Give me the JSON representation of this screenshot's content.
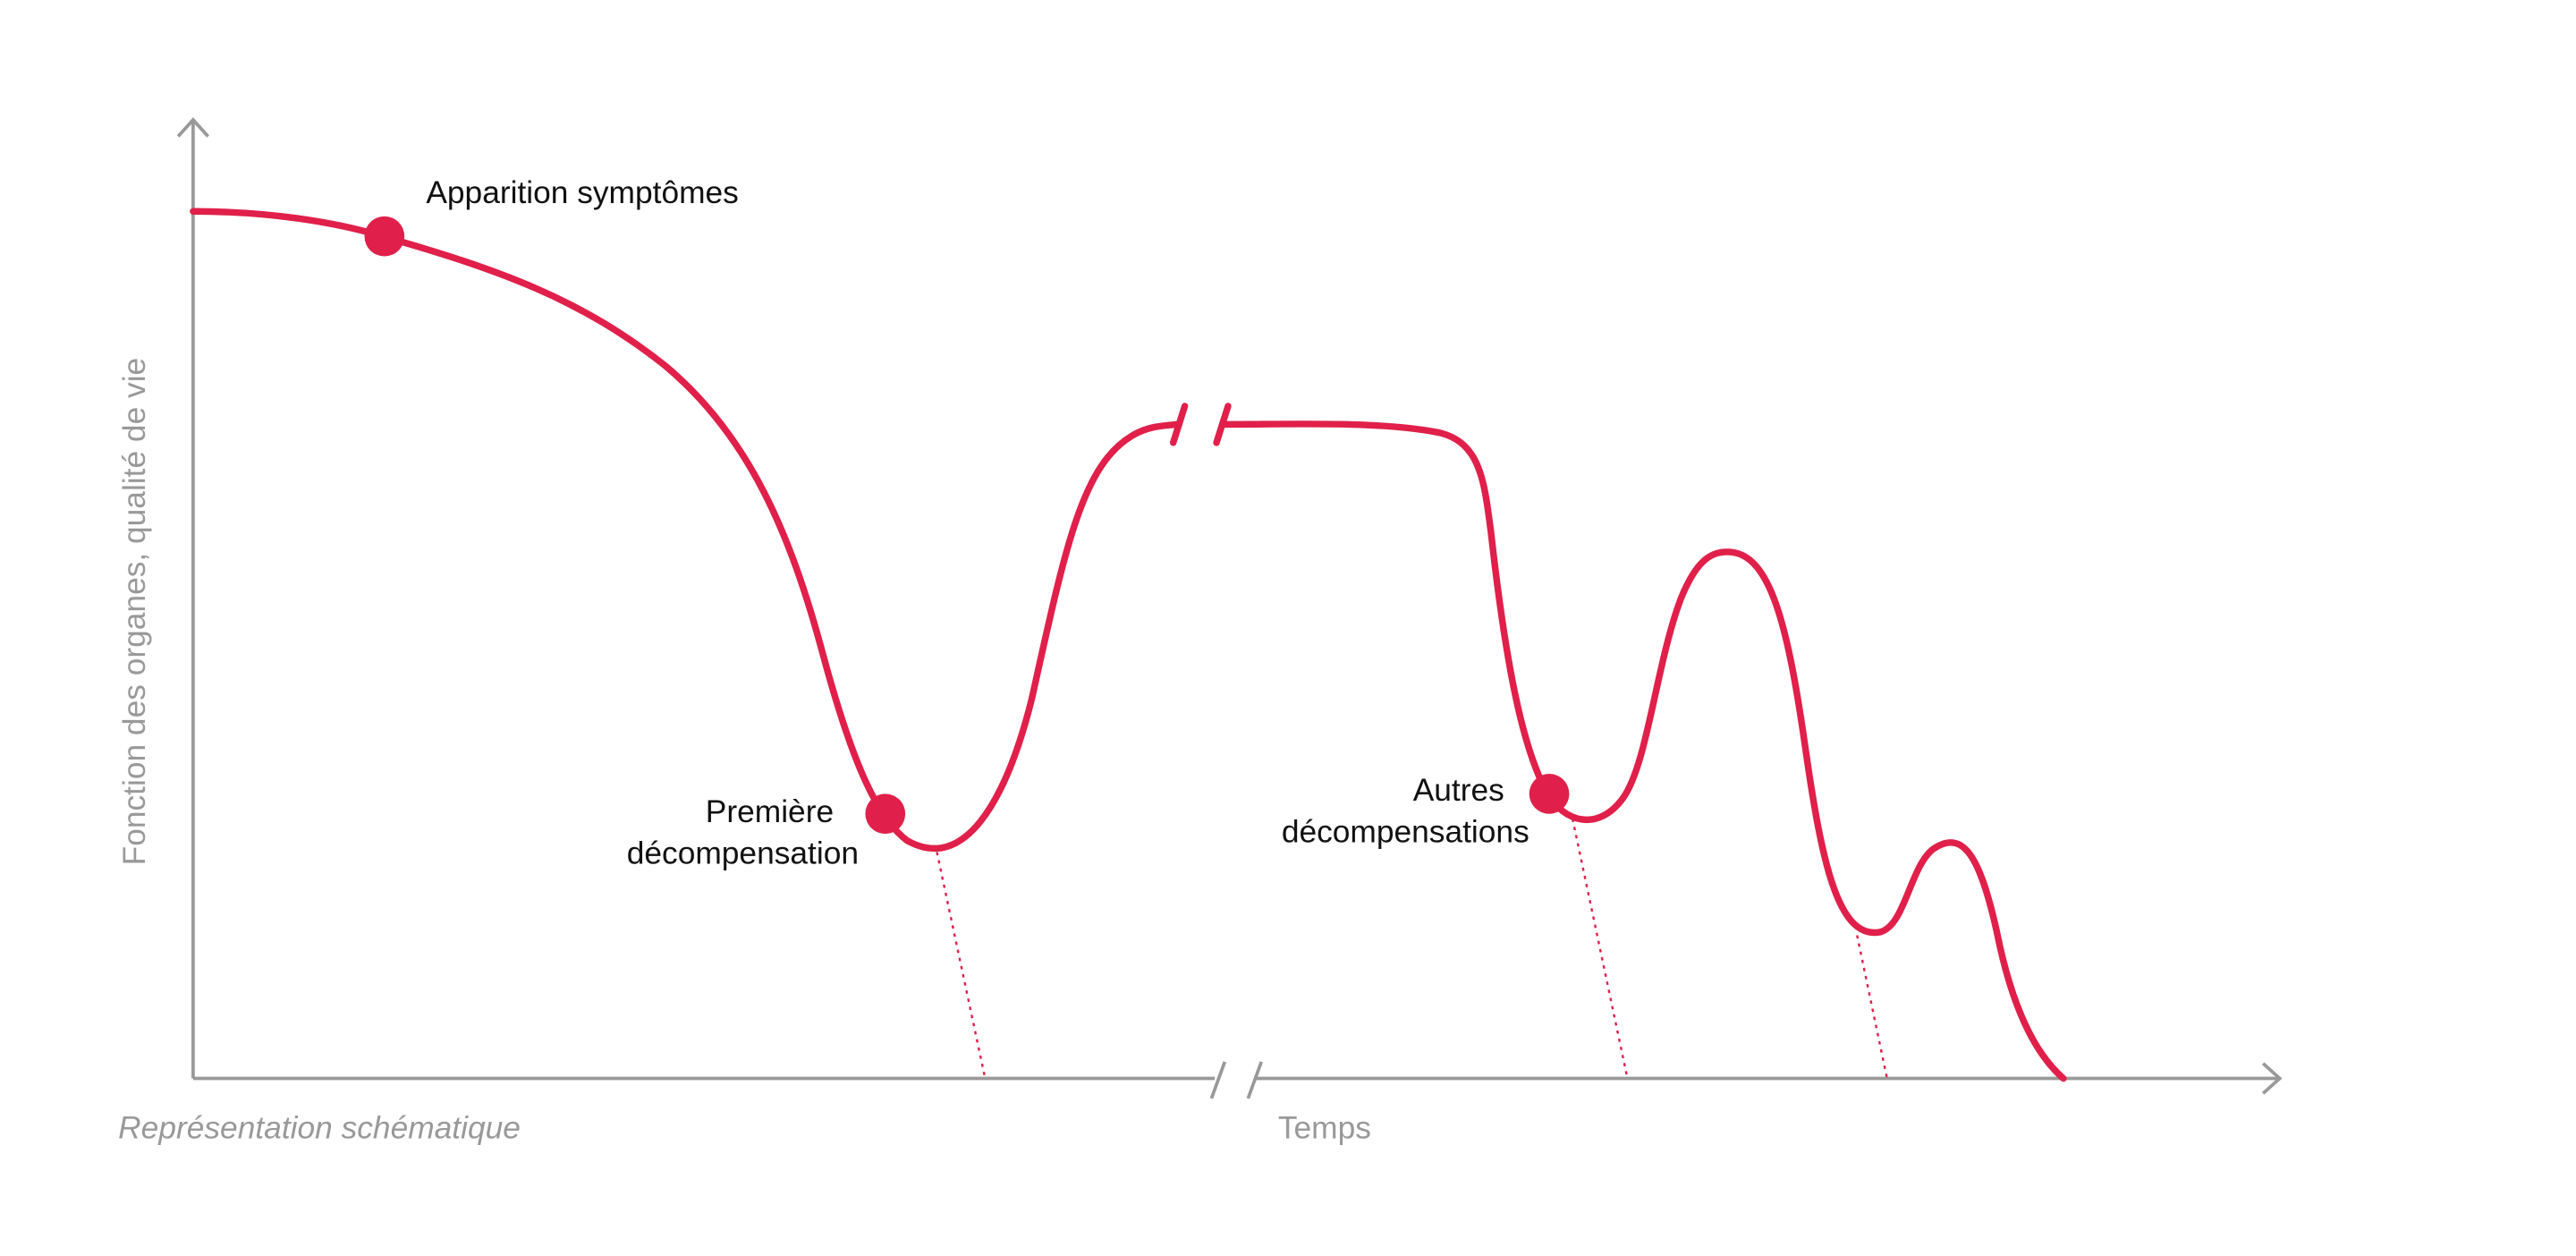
{
  "y_axis_label": "Fonction des organes, qualité de vie",
  "x_axis_label": "Temps",
  "note": "Représentation schématique",
  "annotations": {
    "onset": [
      "Apparition symptômes"
    ],
    "first": [
      "Première",
      "décompensation"
    ],
    "others": [
      "Autres",
      "décompensations"
    ]
  }
}
